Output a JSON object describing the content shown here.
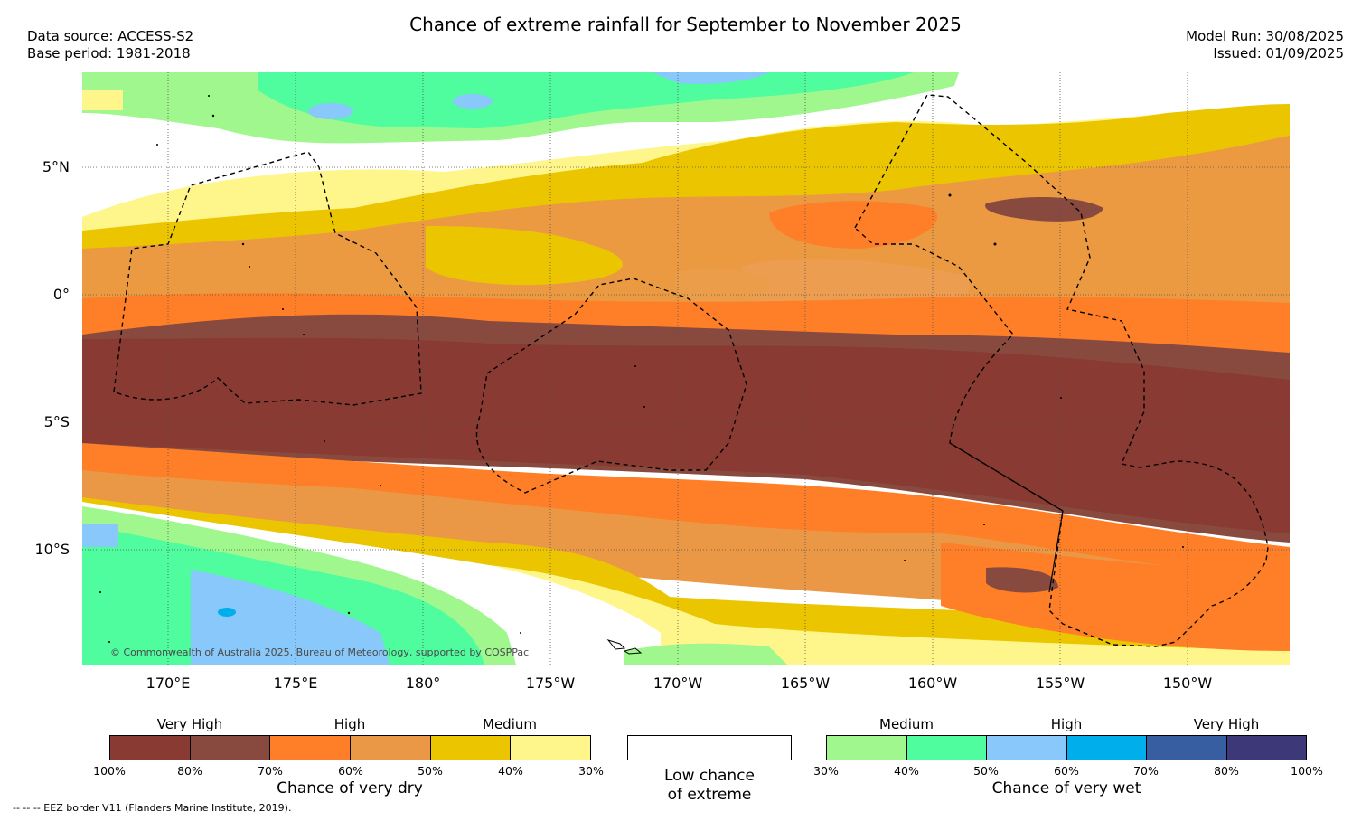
{
  "header": {
    "title": "Chance of extreme rainfall for September to November 2025",
    "data_source": "Data source: ACCESS-S2",
    "base_period": "Base period: 1981-2018",
    "model_run": "Model Run: 30/08/2025",
    "issued": "Issued: 01/09/2025"
  },
  "map": {
    "lat_labels": [
      "5°N",
      "0°",
      "5°S",
      "10°S"
    ],
    "lon_labels": [
      "170°E",
      "175°E",
      "180°",
      "175°W",
      "170°W",
      "165°W",
      "160°W",
      "155°W",
      "150°W"
    ],
    "copyright": "© Commonwealth of Australia 2025, Bureau of Meteorology, supported by COSPPac"
  },
  "legend_dry": {
    "categories": [
      "Very High",
      "High",
      "Medium"
    ],
    "ticks": [
      "100%",
      "80%",
      "70%",
      "60%",
      "50%",
      "40%",
      "30%"
    ],
    "colors": [
      "#893a32",
      "#884a3f",
      "#fe7f27",
      "#eb9846",
      "#ebc600",
      "#fef68b"
    ],
    "title": "Chance of very dry"
  },
  "legend_low": {
    "line1": "Low chance",
    "line2": "of extreme",
    "color": "#ffffff"
  },
  "legend_wet": {
    "categories": [
      "Medium",
      "High",
      "Very High"
    ],
    "ticks": [
      "30%",
      "40%",
      "50%",
      "60%",
      "70%",
      "80%",
      "100%"
    ],
    "colors": [
      "#9ff78e",
      "#4ffc9e",
      "#88c8fa",
      "#00aeeb",
      "#365ea0",
      "#3d3878"
    ],
    "title": "Chance of very wet"
  },
  "footnote": "--  --  -- EEZ border V11 (Flanders Marine Institute, 2019)."
}
